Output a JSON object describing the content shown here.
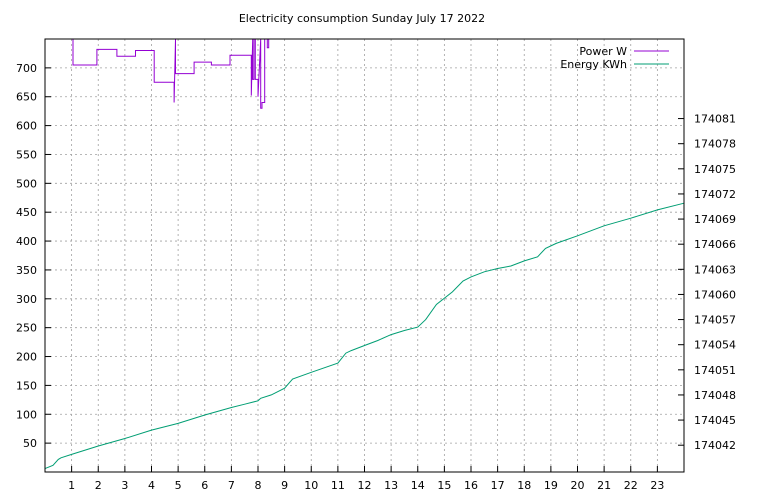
{
  "chart_data": {
    "type": "line",
    "title": "Electricity consumption Sunday July 17 2022",
    "xlabel": "",
    "ylabel": "",
    "xlim": [
      0,
      24
    ],
    "ylim": [
      0,
      750
    ],
    "y2lim": [
      174038.8,
      174090.5
    ],
    "grid": true,
    "legend_position": "top-right",
    "x_ticks": [
      "1",
      "2",
      "3",
      "4",
      "5",
      "6",
      "7",
      "8",
      "9",
      "10",
      "11",
      "12",
      "13",
      "14",
      "15",
      "16",
      "17",
      "18",
      "19",
      "20",
      "21",
      "22",
      "23"
    ],
    "y_ticks": [
      "50",
      "100",
      "150",
      "200",
      "250",
      "300",
      "350",
      "400",
      "450",
      "500",
      "550",
      "600",
      "650",
      "700"
    ],
    "y2_ticks": [
      "174042",
      "174045",
      "174048",
      "174051",
      "174054",
      "174057",
      "174060",
      "174063",
      "174066",
      "174069",
      "174072",
      "174075",
      "174078",
      "174081"
    ],
    "series": [
      {
        "name": "Power W",
        "axis": "y",
        "color": "#9400d3",
        "x": [
          1.05,
          1.05,
          1.95,
          1.95,
          2.7,
          2.7,
          3.4,
          3.4,
          4.1,
          4.1,
          4.85,
          4.85,
          4.9,
          4.9,
          5.6,
          5.6,
          6.25,
          6.25,
          6.95,
          6.95,
          7.75,
          7.75,
          7.8,
          7.8,
          7.85,
          7.85,
          7.9,
          7.9,
          8.0,
          8.0,
          8.1,
          8.1,
          8.15,
          8.15,
          8.25,
          8.25,
          8.35,
          8.35,
          8.4,
          8.4
        ],
        "y": [
          750,
          705,
          705,
          732,
          732,
          720,
          720,
          730,
          730,
          675,
          675,
          640,
          750,
          690,
          690,
          710,
          710,
          705,
          705,
          722,
          722,
          652,
          750,
          680,
          680,
          750,
          750,
          680,
          680,
          650,
          750,
          630,
          630,
          640,
          640,
          750,
          750,
          735,
          735,
          750
        ]
      },
      {
        "name": "Energy KWh",
        "axis": "y2",
        "color": "#009e73",
        "x": [
          0,
          0.3,
          0.5,
          0.6,
          1,
          2,
          3,
          4,
          5,
          6,
          7,
          7.5,
          8,
          8.1,
          8.5,
          9,
          9.3,
          10,
          11,
          11.3,
          11.5,
          12,
          12.5,
          13,
          13.5,
          14,
          14.3,
          14.7,
          15.3,
          15.7,
          16,
          16.5,
          17,
          17.5,
          18,
          18.5,
          18.8,
          19.2,
          20,
          20.5,
          21,
          22,
          23,
          24
        ],
        "y": [
          174039.2,
          174039.6,
          174040.3,
          174040.5,
          174040.9,
          174041.9,
          174042.8,
          174043.8,
          174044.6,
          174045.6,
          174046.5,
          174046.9,
          174047.3,
          174047.6,
          174048,
          174048.8,
          174049.9,
          174050.7,
          174051.8,
          174053.0,
          174053.3,
          174053.9,
          174054.5,
          174055.2,
          174055.7,
          174056.1,
          174057,
          174058.8,
          174060.3,
          174061.6,
          174062.1,
          174062.7,
          174063.1,
          174063.4,
          174064.0,
          174064.5,
          174065.5,
          174066.1,
          174067.0,
          174067.6,
          174068.2,
          174069.1,
          174070.1,
          174070.9
        ]
      }
    ]
  }
}
